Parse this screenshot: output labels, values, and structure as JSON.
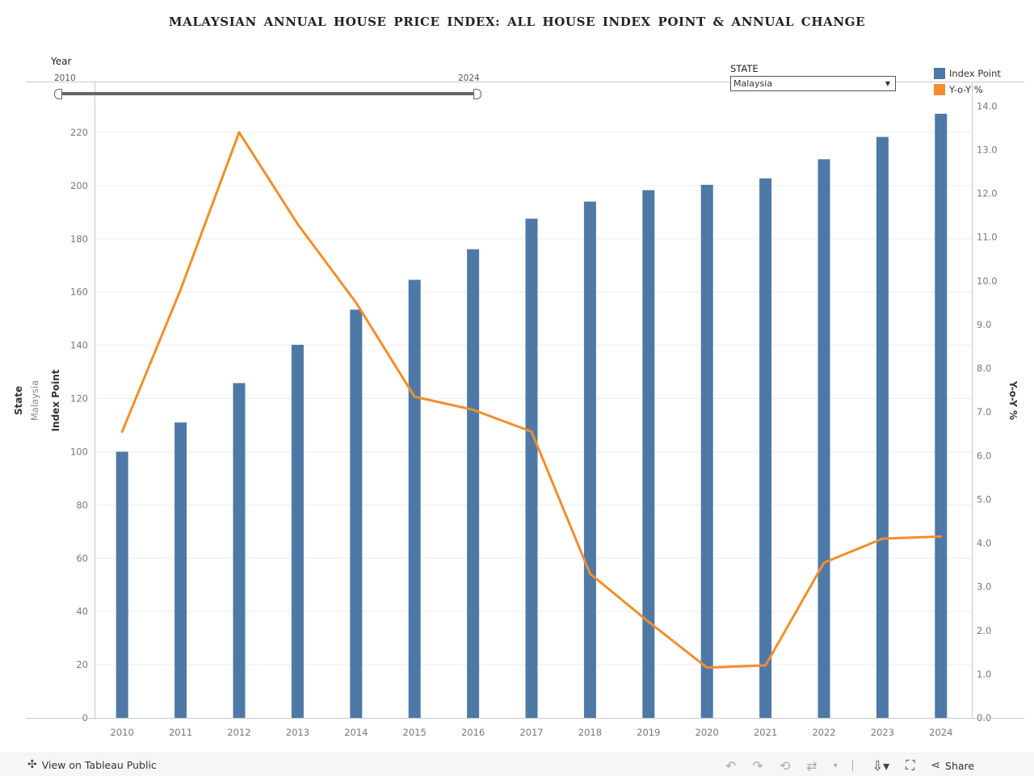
{
  "title": "MALAYSIAN ANNUAL HOUSE PRICE INDEX: ALL HOUSE INDEX POINT & ANNUAL CHANGE",
  "year_filter": {
    "label": "Year",
    "min_label": "2010",
    "max_label": "2024"
  },
  "state_filter": {
    "label": "STATE",
    "selected": "Malaysia"
  },
  "legend": [
    {
      "label": "Index Point",
      "color": "#4e79a7"
    },
    {
      "label": "Y-o-Y %",
      "color": "#f28e2b"
    }
  ],
  "row_header": {
    "label": "State",
    "value": "Malaysia"
  },
  "chart_data": {
    "type": "bar",
    "categories": [
      "2010",
      "2011",
      "2012",
      "2013",
      "2014",
      "2015",
      "2016",
      "2017",
      "2018",
      "2019",
      "2020",
      "2021",
      "2022",
      "2023",
      "2024"
    ],
    "series": [
      {
        "name": "Index Point",
        "type": "bar",
        "axis": "left",
        "color": "#4e79a7",
        "values": [
          100.0,
          111.0,
          125.8,
          140.2,
          153.4,
          164.6,
          176.1,
          187.6,
          194.0,
          198.3,
          200.3,
          202.7,
          209.9,
          218.3,
          227.0
        ]
      },
      {
        "name": "Y-o-Y %",
        "type": "line",
        "axis": "right",
        "color": "#f28e2b",
        "values": [
          6.55,
          9.8,
          13.4,
          11.3,
          9.5,
          7.35,
          7.05,
          6.55,
          3.3,
          2.2,
          1.15,
          1.2,
          3.55,
          4.1,
          4.15
        ]
      }
    ],
    "ylabel": "Index Point",
    "y2label": "Y-o-Y %",
    "xlabel": "",
    "ylim": [
      0,
      230
    ],
    "y2lim": [
      0,
      14
    ],
    "yticks": [
      "0",
      "20",
      "40",
      "60",
      "80",
      "100",
      "120",
      "140",
      "160",
      "180",
      "200",
      "220"
    ],
    "y2ticks": [
      "0.0",
      "1.0",
      "2.0",
      "3.0",
      "4.0",
      "5.0",
      "6.0",
      "7.0",
      "8.0",
      "9.0",
      "10.0",
      "11.0",
      "12.0",
      "13.0",
      "14.0"
    ],
    "grid": true
  },
  "footer": {
    "view_label": "View on Tableau Public",
    "share_label": "Share"
  }
}
